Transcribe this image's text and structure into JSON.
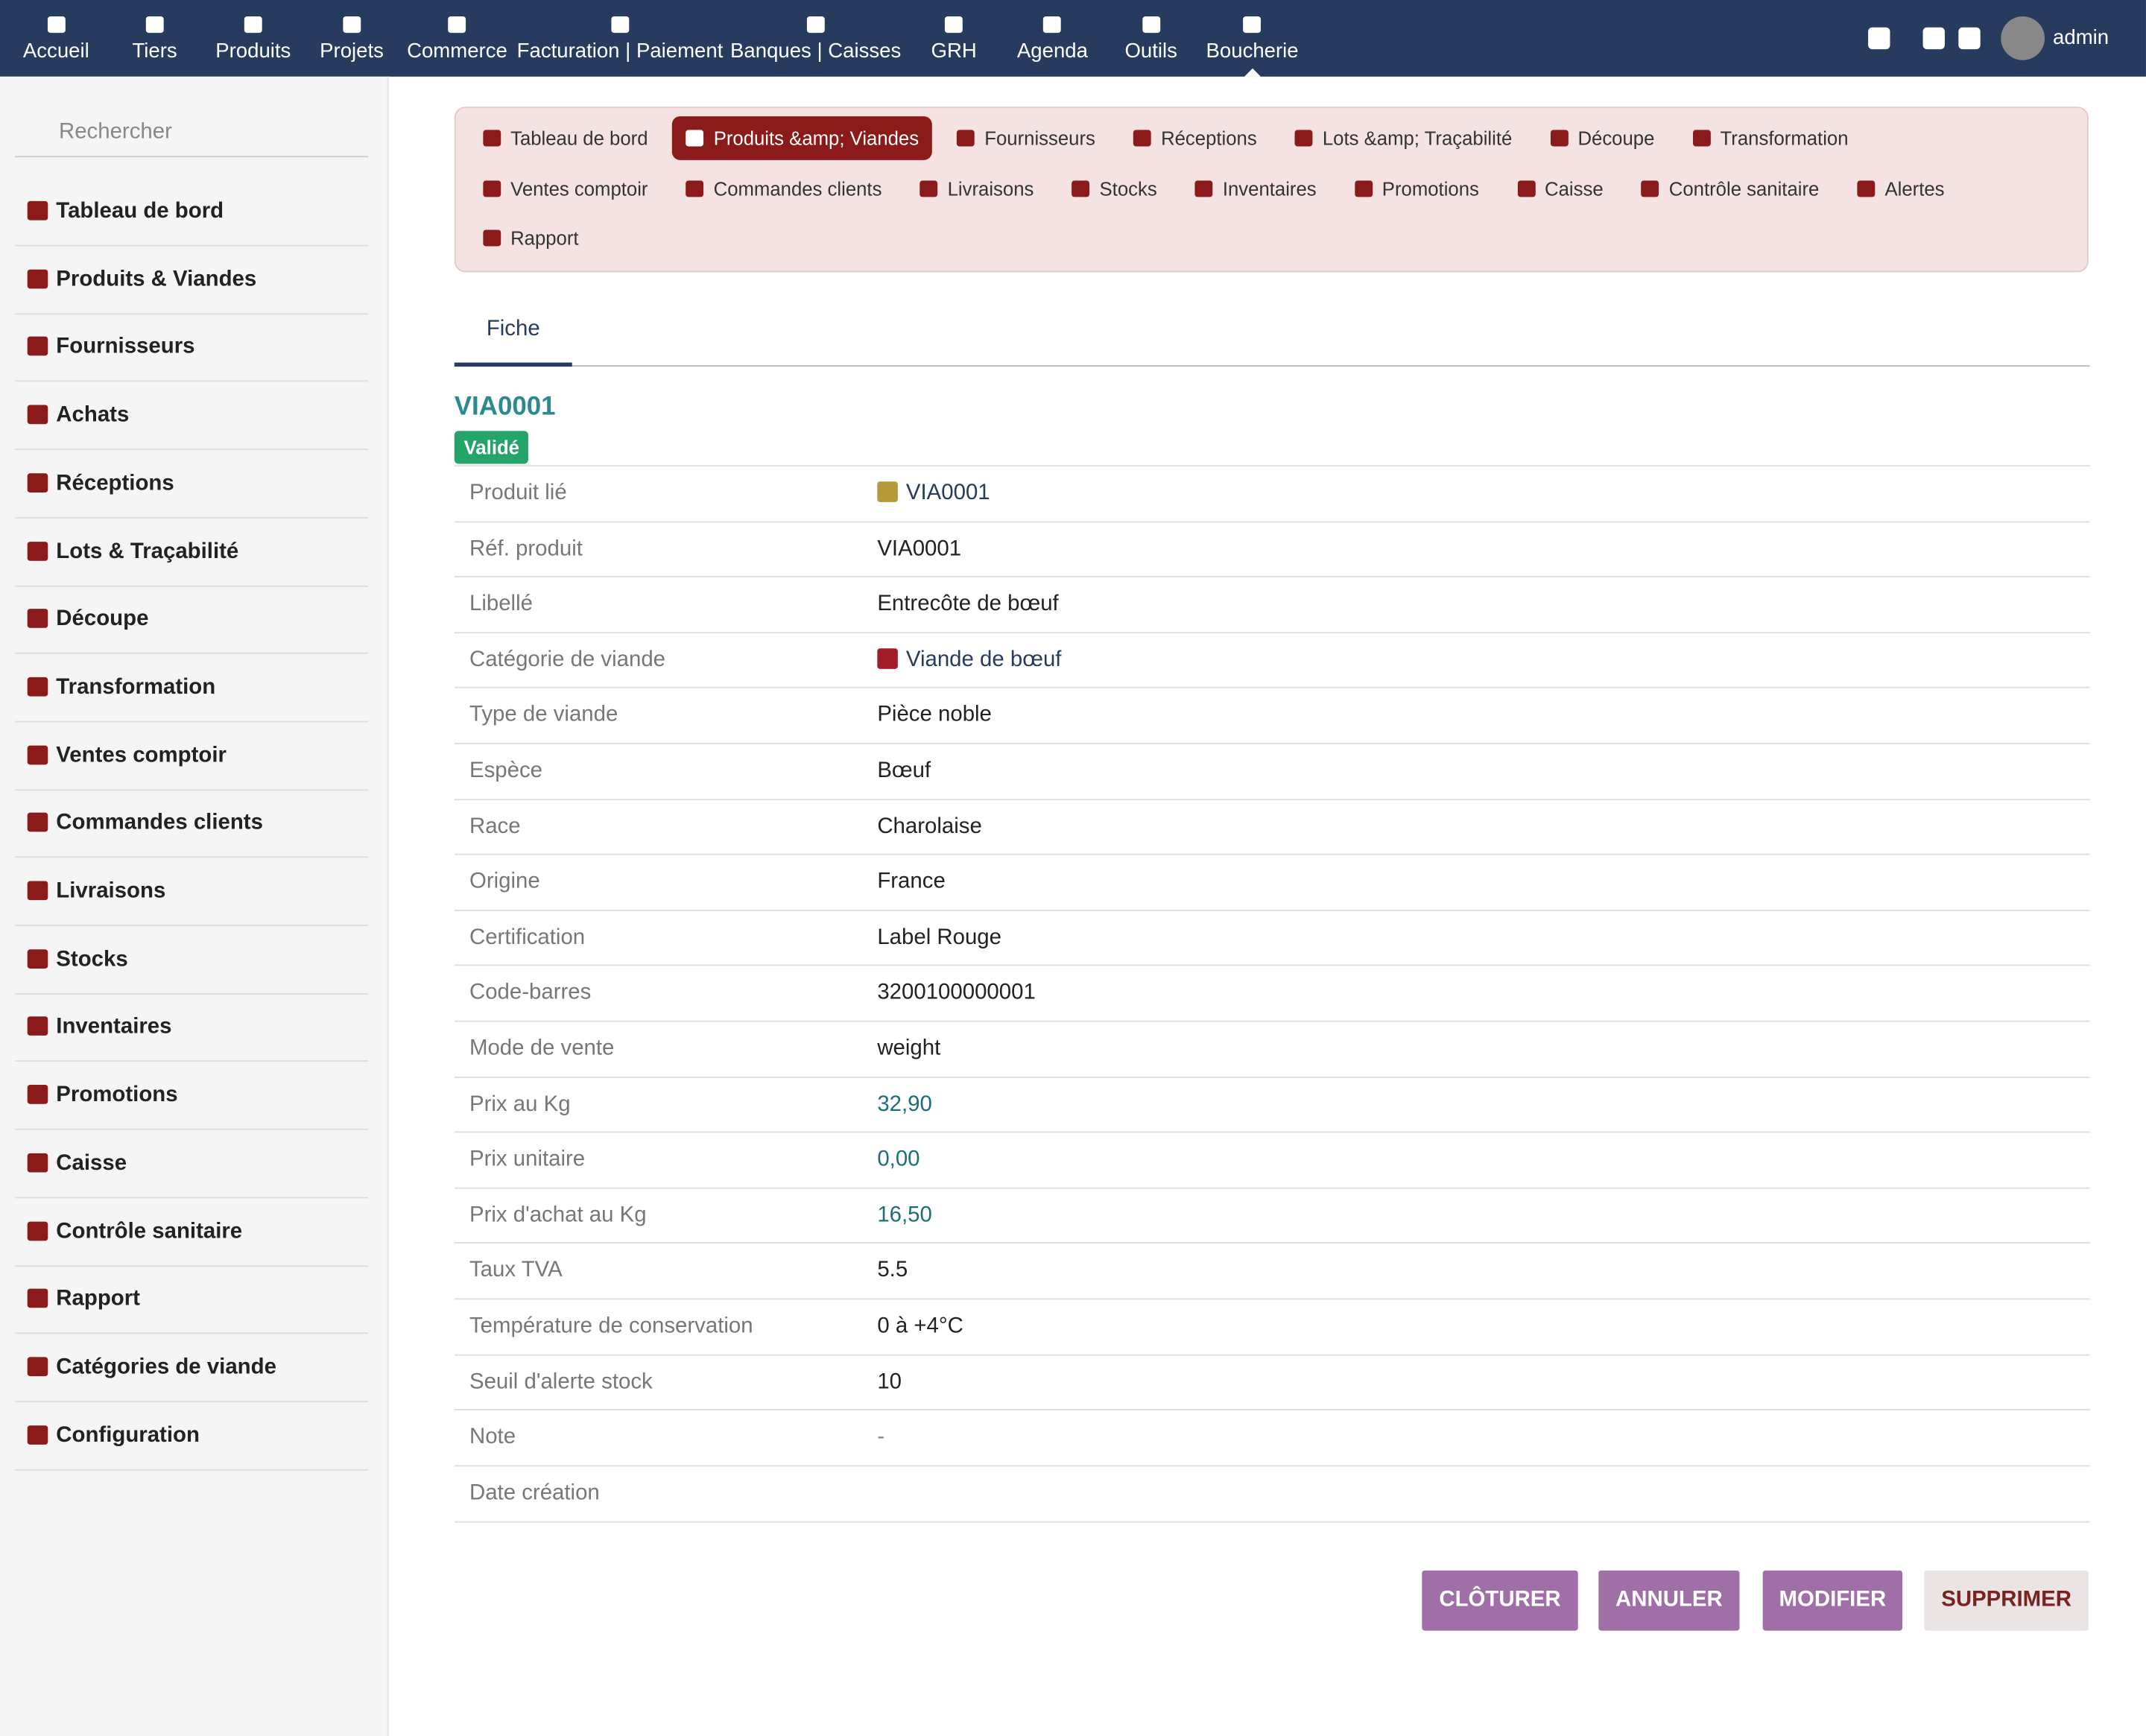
{
  "topnav": {
    "items": [
      "Accueil",
      "Tiers",
      "Produits",
      "Projets",
      "Commerce",
      "Facturation | Paiement",
      "Banques | Caisses",
      "GRH",
      "Agenda",
      "Outils",
      "Boucherie"
    ],
    "active_index": 10,
    "user": "admin"
  },
  "sidebar": {
    "search_placeholder": "Rechercher",
    "items": [
      "Tableau de bord",
      "Produits & Viandes",
      "Fournisseurs",
      "Achats",
      "Réceptions",
      "Lots & Traçabilité",
      "Découpe",
      "Transformation",
      "Ventes comptoir",
      "Commandes clients",
      "Livraisons",
      "Stocks",
      "Inventaires",
      "Promotions",
      "Caisse",
      "Contrôle sanitaire",
      "Rapport",
      "Catégories de viande",
      "Configuration"
    ]
  },
  "module_tabs": {
    "active_index": 1,
    "rows": [
      [
        "Tableau de bord",
        "Produits &amp; Viandes",
        "Fournisseurs",
        "Réceptions",
        "Lots &amp; Traçabilité",
        "Découpe",
        "Transformation"
      ],
      [
        "Ventes comptoir",
        "Commandes clients",
        "Livraisons",
        "Stocks",
        "Inventaires",
        "Promotions",
        "Caisse",
        "Contrôle sanitaire",
        "Alertes"
      ],
      [
        "Rapport"
      ]
    ]
  },
  "tabs": [
    "Fiche"
  ],
  "record": {
    "ref": "VIA0001",
    "status": "Validé",
    "fields": [
      {
        "label": "Produit lié",
        "value": "VIA0001",
        "kind": "link"
      },
      {
        "label": "Réf. produit",
        "value": "VIA0001",
        "kind": "text"
      },
      {
        "label": "Libellé",
        "value": "Entrecôte de bœuf",
        "kind": "text"
      },
      {
        "label": "Catégorie de viande",
        "value": "Viande de bœuf",
        "kind": "link"
      },
      {
        "label": "Type de viande",
        "value": "Pièce noble",
        "kind": "text"
      },
      {
        "label": "Espèce",
        "value": "Bœuf",
        "kind": "text"
      },
      {
        "label": "Race",
        "value": "Charolaise",
        "kind": "text"
      },
      {
        "label": "Origine",
        "value": "France",
        "kind": "text"
      },
      {
        "label": "Certification",
        "value": "Label Rouge",
        "kind": "text"
      },
      {
        "label": "Code-barres",
        "value": "3200100000001",
        "kind": "text"
      },
      {
        "label": "Mode de vente",
        "value": "weight",
        "kind": "text"
      },
      {
        "label": "Prix au Kg",
        "value": "32,90",
        "kind": "number"
      },
      {
        "label": "Prix unitaire",
        "value": "0,00",
        "kind": "number"
      },
      {
        "label": "Prix d'achat au Kg",
        "value": "16,50",
        "kind": "number"
      },
      {
        "label": "Taux TVA",
        "value": "5.5",
        "kind": "text"
      },
      {
        "label": "Température de conservation",
        "value": "0 à +4°C",
        "kind": "text"
      },
      {
        "label": "Seuil d'alerte stock",
        "value": "10",
        "kind": "text"
      },
      {
        "label": "Note",
        "value": "-",
        "kind": "muted"
      },
      {
        "label": "Date création",
        "kind": "text"
      }
    ]
  },
  "buttons": [
    {
      "label": "CLÔTURER",
      "style": "primary"
    },
    {
      "label": "ANNULER",
      "style": "primary"
    },
    {
      "label": "MODIFIER",
      "style": "primary"
    },
    {
      "label": "SUPPRIMER",
      "style": "danger"
    }
  ]
}
